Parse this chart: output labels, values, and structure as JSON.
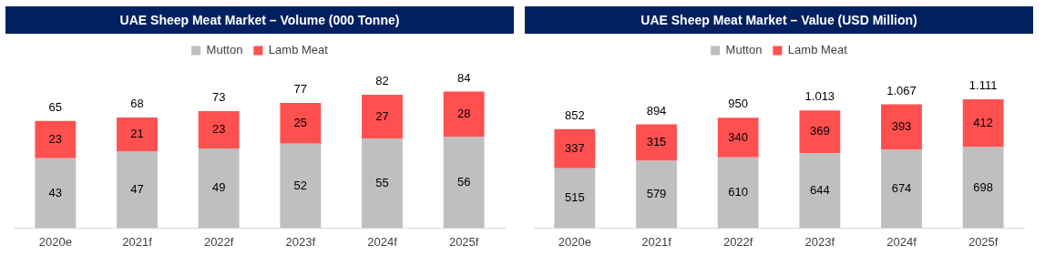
{
  "chart_data": [
    {
      "type": "bar",
      "title": "UAE Sheep Meat Market – Volume (000 Tonne)",
      "categories": [
        "2020e",
        "2021f",
        "2022f",
        "2023f",
        "2024f",
        "2025f"
      ],
      "stacked": true,
      "data_labels": true,
      "legend": "top",
      "grid": false,
      "tick_labels": "x",
      "series": [
        {
          "name": "Mutton",
          "color": "#bfbfbf",
          "values": [
            43,
            47,
            49,
            52,
            55,
            56
          ]
        },
        {
          "name": "Lamb Meat",
          "color": "#ff5050",
          "values": [
            23,
            21,
            23,
            25,
            27,
            28
          ]
        }
      ],
      "totals": [
        "65",
        "68",
        "73",
        "77",
        "82",
        "84"
      ]
    },
    {
      "type": "bar",
      "title": "UAE Sheep Meat Market – Value (USD Million)",
      "categories": [
        "2020e",
        "2021f",
        "2022f",
        "2023f",
        "2024f",
        "2025f"
      ],
      "stacked": true,
      "data_labels": true,
      "legend": "top",
      "grid": false,
      "tick_labels": "x",
      "series": [
        {
          "name": "Mutton",
          "color": "#bfbfbf",
          "values": [
            515,
            579,
            610,
            644,
            674,
            698
          ]
        },
        {
          "name": "Lamb Meat",
          "color": "#ff5050",
          "values": [
            337,
            315,
            340,
            369,
            393,
            412
          ]
        }
      ],
      "totals": [
        "852",
        "894",
        "950",
        "1.013",
        "1.067",
        "1.111"
      ]
    }
  ]
}
